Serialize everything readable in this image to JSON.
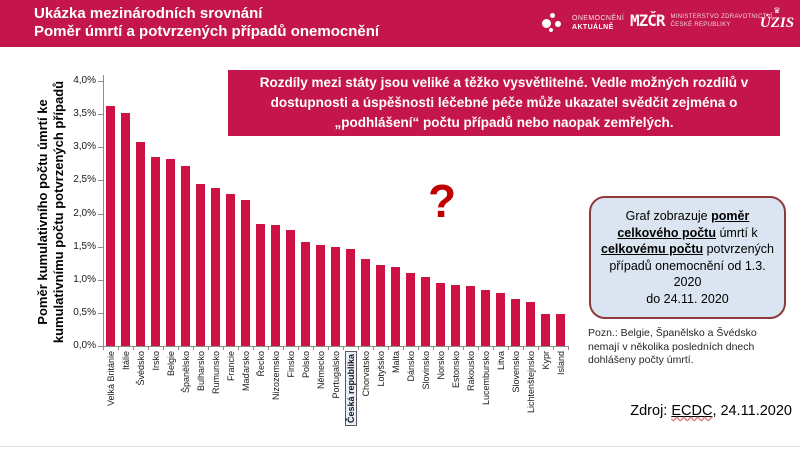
{
  "header": {
    "title_line1": "Ukázka mezinárodních srovnání",
    "title_line2": "Poměr úmrtí a potvrzených případů onemocnění",
    "background_color": "#c4164c",
    "logos": {
      "onemocneni_line1": "ONEMOCNĚNÍ",
      "onemocneni_line2": "AKTUÁLNĚ",
      "mz_wordmark": "MZČR",
      "ministry_line1": "MINISTERSTVO ZDRAVOTNICTVÍ",
      "ministry_line2": "ČESKÉ REPUBLIKY",
      "crown_icon": "♛",
      "uzis_label": "ÚZIS"
    }
  },
  "callout": {
    "text": "Rozdíly mezi státy jsou veliké a těžko vysvětlitelné. Vedle možných rozdílů v dostupnosti a úspěšnosti léčebné péče může ukazatel svědčit zejména o „podhlášení“ počtu případů nebo naopak zemřelých.",
    "background_color": "#c4164c"
  },
  "question_mark": "?",
  "info_box": {
    "seg_normal1": "Graf zobrazuje ",
    "seg_bold1": "poměr celkového počtu",
    "seg_normal2": " úmrtí k ",
    "seg_bold2": "celkovému počtu",
    "seg_normal3": " potvrzených případů onemocnění od 1.3. 2020",
    "seg_line2": "do 24.11. 2020",
    "background_color": "#dbe5f1",
    "border_color": "#8f3b3b"
  },
  "note": "Pozn.: Belgie, Španělsko a Švédsko nemají v několika posledních dnech dohlášeny počty úmrtí.",
  "source": {
    "prefix": "Zdroj: ",
    "link": "ECDC",
    "suffix": ", 24.11.2020"
  },
  "colors": {
    "crimson": "#c4164c",
    "bar": "#ce1243",
    "question_mark": "#c00000",
    "axis": "#8c8c8c"
  },
  "chart_data": {
    "type": "bar",
    "title": "",
    "ylabel": "Poměr kumulativního počtu úmrtí ke\nkumulativnímu počtu potvrzených případů",
    "xlabel": "",
    "ylim": [
      0,
      4.0
    ],
    "ytick_step": 0.5,
    "ytick_labels": [
      "0,0%",
      "0,5%",
      "1,0%",
      "1,5%",
      "2,0%",
      "2,5%",
      "3,0%",
      "3,5%",
      "4,0%"
    ],
    "unit": "%",
    "grid": false,
    "legend": false,
    "bar_color": "#ce1243",
    "highlight_category": "Česká republika",
    "categories": [
      "Velká Británie",
      "Itálie",
      "Švédsko",
      "Irsko",
      "Belgie",
      "Španělsko",
      "Bulharsko",
      "Rumunsko",
      "Francie",
      "Maďarsko",
      "Řecko",
      "Nizozemsko",
      "Finsko",
      "Polsko",
      "Německo",
      "Portugalsko",
      "Česká republika",
      "Chorvatsko",
      "Lotyšsko",
      "Malta",
      "Dánsko",
      "Slovinsko",
      "Norsko",
      "Estonsko",
      "Rakousko",
      "Lucembursko",
      "Litva",
      "Slovensko",
      "Lichtenštejnsko",
      "Kypr",
      "Island"
    ],
    "values": [
      3.62,
      3.52,
      3.08,
      2.86,
      2.82,
      2.72,
      2.45,
      2.39,
      2.29,
      2.2,
      1.84,
      1.82,
      1.75,
      1.57,
      1.53,
      1.49,
      1.46,
      1.31,
      1.22,
      1.2,
      1.1,
      1.04,
      0.95,
      0.92,
      0.9,
      0.85,
      0.8,
      0.71,
      0.66,
      0.48,
      0.48
    ]
  }
}
